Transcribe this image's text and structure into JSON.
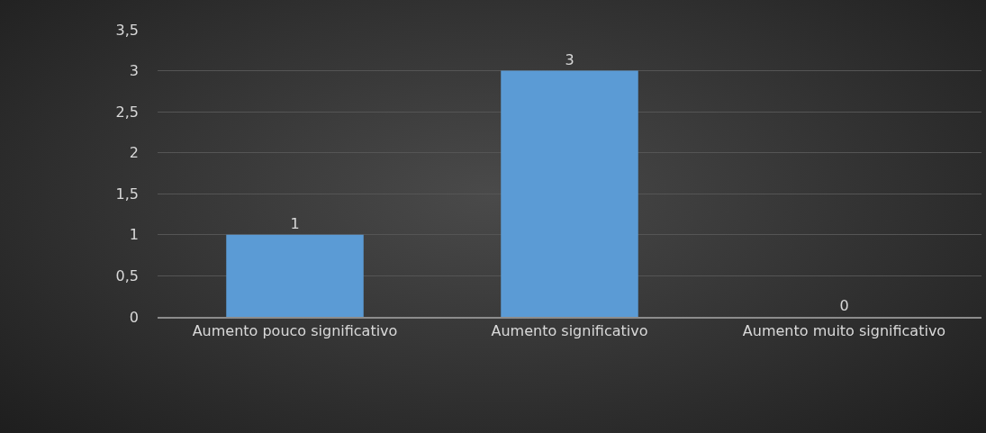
{
  "chart_data": {
    "type": "bar",
    "categories": [
      "Aumento pouco significativo",
      "Aumento significativo",
      "Aumento muito significativo"
    ],
    "values": [
      1,
      3,
      0
    ],
    "color": "#5b9bd5",
    "ylim": [
      0,
      3.5
    ],
    "yticks": [
      0,
      {
        "value": 0.5,
        "label": "0,5"
      },
      1,
      {
        "value": 1.5,
        "label": "1,5"
      },
      2,
      {
        "value": 2.5,
        "label": "2,5"
      },
      3,
      {
        "value": 3.5,
        "label": "3,5"
      }
    ],
    "grid": "y",
    "data_labels": true
  }
}
